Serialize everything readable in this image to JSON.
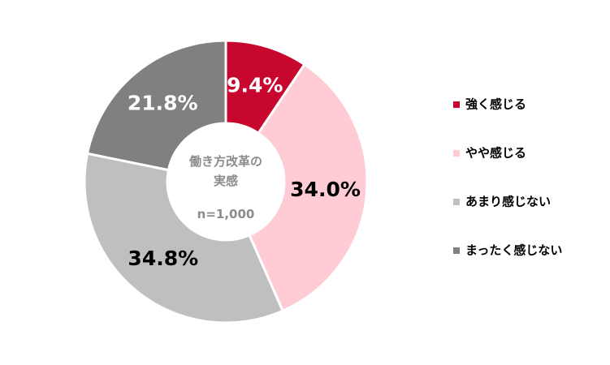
{
  "chart_data": {
    "type": "donut",
    "center_title": "働き方改革の実感",
    "center_note": "n=1,000",
    "categories": [
      "強く感じる",
      "やや感じる",
      "あまり感じない",
      "まったく感じない"
    ],
    "values": [
      9.4,
      34.0,
      34.8,
      21.8
    ],
    "value_labels": [
      "9.4%",
      "34.0%",
      "34.8%",
      "21.8%"
    ],
    "colors": [
      "#c8072f",
      "#ffcbd5",
      "#bfbfbf",
      "#808080"
    ],
    "legend": "right"
  }
}
